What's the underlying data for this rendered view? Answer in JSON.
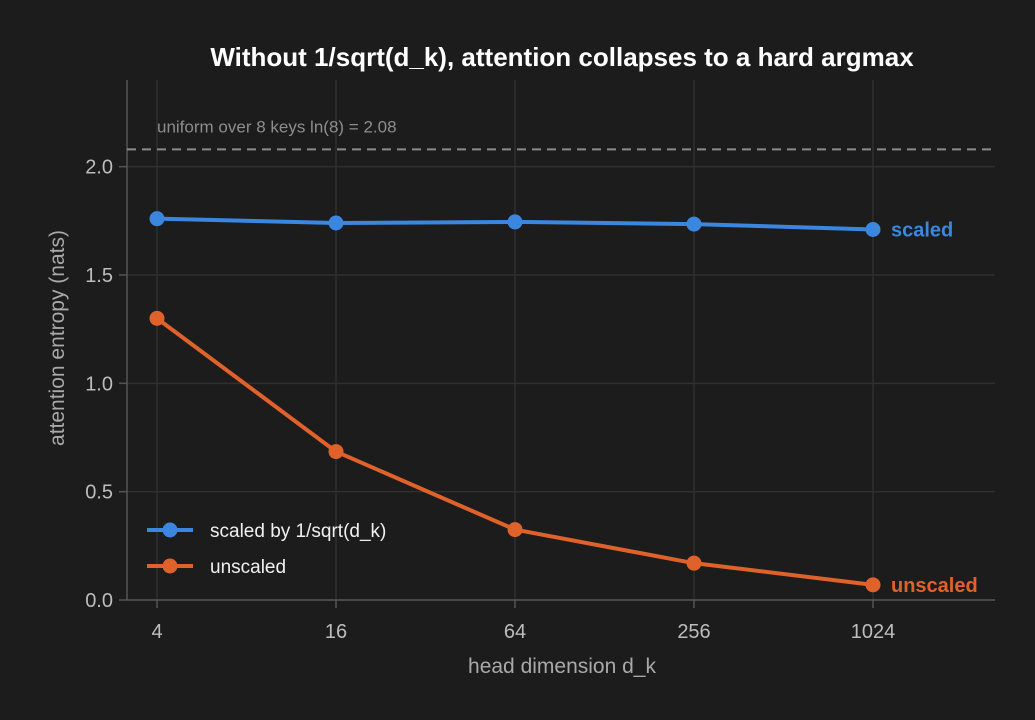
{
  "chart_data": {
    "type": "line",
    "title": "Without 1/sqrt(d_k), attention collapses to a hard argmax",
    "xlabel": "head dimension  d_k",
    "ylabel": "attention entropy (nats)",
    "x_scale": "log2",
    "categories": [
      "4",
      "16",
      "64",
      "256",
      "1024"
    ],
    "x": [
      4,
      16,
      64,
      256,
      1024
    ],
    "ylim": [
      0,
      2.4
    ],
    "yticks": [
      "0.0",
      "0.5",
      "1.0",
      "1.5",
      "2.0"
    ],
    "ytick_values": [
      0,
      0.5,
      1.0,
      1.5,
      2.0
    ],
    "grid": true,
    "legend_position": "lower-left",
    "reference_line": {
      "y": 2.08,
      "label": "uniform over 8 keys  ln(8) = 2.08",
      "color": "#8a8a8a"
    },
    "series": [
      {
        "name": "scaled by 1/sqrt(d_k)",
        "end_label": "scaled",
        "color": "#3b87e0",
        "values": [
          1.76,
          1.74,
          1.745,
          1.735,
          1.71
        ]
      },
      {
        "name": "unscaled",
        "end_label": "unscaled",
        "color": "#e0622b",
        "values": [
          1.3,
          0.685,
          0.325,
          0.17,
          0.07
        ]
      }
    ]
  }
}
